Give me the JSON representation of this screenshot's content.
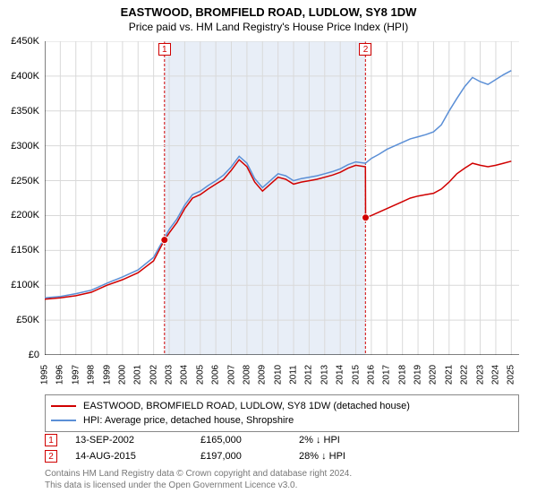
{
  "title": {
    "main": "EASTWOOD, BROMFIELD ROAD, LUDLOW, SY8 1DW",
    "sub": "Price paid vs. HM Land Registry's House Price Index (HPI)",
    "fontsize_main": 13,
    "fontsize_sub": 12
  },
  "chart": {
    "type": "line",
    "background_color": "#ffffff",
    "grid_color": "#d9d9d9",
    "highlight_band_color": "#e8eef7",
    "axis_color": "#000000",
    "line_width": 1.5,
    "marker_radius": 4,
    "marker_fill": "#d00000",
    "badge_border": "#d00000",
    "x": {
      "min": 1995,
      "max": 2025.5,
      "ticks": [
        1995,
        1996,
        1997,
        1998,
        1999,
        2000,
        2001,
        2002,
        2003,
        2004,
        2005,
        2006,
        2007,
        2008,
        2009,
        2010,
        2011,
        2012,
        2013,
        2014,
        2015,
        2016,
        2017,
        2018,
        2019,
        2020,
        2021,
        2022,
        2023,
        2024,
        2025
      ]
    },
    "y": {
      "min": 0,
      "max": 450000,
      "tick_step": 50000,
      "labels": [
        "£0",
        "£50K",
        "£100K",
        "£150K",
        "£200K",
        "£250K",
        "£300K",
        "£350K",
        "£400K",
        "£450K"
      ]
    },
    "highlight_band": {
      "x_start": 2002.7,
      "x_end": 2015.62
    },
    "series": [
      {
        "name": "price_paid",
        "label": "EASTWOOD, BROMFIELD ROAD, LUDLOW, SY8 1DW (detached house)",
        "color": "#d00000",
        "points": [
          [
            1995.0,
            80000
          ],
          [
            1996.0,
            82000
          ],
          [
            1997.0,
            85000
          ],
          [
            1998.0,
            90000
          ],
          [
            1999.0,
            100000
          ],
          [
            2000.0,
            108000
          ],
          [
            2001.0,
            118000
          ],
          [
            2002.0,
            135000
          ],
          [
            2002.7,
            165000
          ],
          [
            2003.0,
            175000
          ],
          [
            2003.5,
            190000
          ],
          [
            2004.0,
            210000
          ],
          [
            2004.5,
            225000
          ],
          [
            2005.0,
            230000
          ],
          [
            2005.5,
            238000
          ],
          [
            2006.0,
            245000
          ],
          [
            2006.5,
            252000
          ],
          [
            2007.0,
            265000
          ],
          [
            2007.5,
            280000
          ],
          [
            2008.0,
            270000
          ],
          [
            2008.5,
            248000
          ],
          [
            2009.0,
            235000
          ],
          [
            2009.5,
            245000
          ],
          [
            2010.0,
            255000
          ],
          [
            2010.5,
            252000
          ],
          [
            2011.0,
            245000
          ],
          [
            2011.5,
            248000
          ],
          [
            2012.0,
            250000
          ],
          [
            2012.5,
            252000
          ],
          [
            2013.0,
            255000
          ],
          [
            2013.5,
            258000
          ],
          [
            2014.0,
            262000
          ],
          [
            2014.5,
            268000
          ],
          [
            2015.0,
            272000
          ],
          [
            2015.62,
            270000
          ],
          [
            2015.63,
            197000
          ],
          [
            2016.0,
            200000
          ],
          [
            2016.5,
            205000
          ],
          [
            2017.0,
            210000
          ],
          [
            2017.5,
            215000
          ],
          [
            2018.0,
            220000
          ],
          [
            2018.5,
            225000
          ],
          [
            2019.0,
            228000
          ],
          [
            2019.5,
            230000
          ],
          [
            2020.0,
            232000
          ],
          [
            2020.5,
            238000
          ],
          [
            2021.0,
            248000
          ],
          [
            2021.5,
            260000
          ],
          [
            2022.0,
            268000
          ],
          [
            2022.5,
            275000
          ],
          [
            2023.0,
            272000
          ],
          [
            2023.5,
            270000
          ],
          [
            2024.0,
            272000
          ],
          [
            2024.5,
            275000
          ],
          [
            2025.0,
            278000
          ]
        ]
      },
      {
        "name": "hpi",
        "label": "HPI: Average price, detached house, Shropshire",
        "color": "#5b8fd6",
        "points": [
          [
            1995.0,
            82000
          ],
          [
            1996.0,
            84000
          ],
          [
            1997.0,
            88000
          ],
          [
            1998.0,
            93000
          ],
          [
            1999.0,
            103000
          ],
          [
            2000.0,
            112000
          ],
          [
            2001.0,
            122000
          ],
          [
            2002.0,
            140000
          ],
          [
            2002.7,
            168000
          ],
          [
            2003.0,
            180000
          ],
          [
            2003.5,
            195000
          ],
          [
            2004.0,
            215000
          ],
          [
            2004.5,
            230000
          ],
          [
            2005.0,
            235000
          ],
          [
            2005.5,
            243000
          ],
          [
            2006.0,
            250000
          ],
          [
            2006.5,
            258000
          ],
          [
            2007.0,
            270000
          ],
          [
            2007.5,
            285000
          ],
          [
            2008.0,
            275000
          ],
          [
            2008.5,
            253000
          ],
          [
            2009.0,
            240000
          ],
          [
            2009.5,
            250000
          ],
          [
            2010.0,
            260000
          ],
          [
            2010.5,
            257000
          ],
          [
            2011.0,
            250000
          ],
          [
            2011.5,
            253000
          ],
          [
            2012.0,
            255000
          ],
          [
            2012.5,
            257000
          ],
          [
            2013.0,
            260000
          ],
          [
            2013.5,
            263000
          ],
          [
            2014.0,
            267000
          ],
          [
            2014.5,
            273000
          ],
          [
            2015.0,
            277000
          ],
          [
            2015.62,
            275000
          ],
          [
            2016.0,
            282000
          ],
          [
            2016.5,
            288000
          ],
          [
            2017.0,
            295000
          ],
          [
            2017.5,
            300000
          ],
          [
            2018.0,
            305000
          ],
          [
            2018.5,
            310000
          ],
          [
            2019.0,
            313000
          ],
          [
            2019.5,
            316000
          ],
          [
            2020.0,
            320000
          ],
          [
            2020.5,
            330000
          ],
          [
            2021.0,
            350000
          ],
          [
            2021.5,
            368000
          ],
          [
            2022.0,
            385000
          ],
          [
            2022.5,
            398000
          ],
          [
            2023.0,
            392000
          ],
          [
            2023.5,
            388000
          ],
          [
            2024.0,
            395000
          ],
          [
            2024.5,
            402000
          ],
          [
            2025.0,
            408000
          ]
        ]
      }
    ],
    "sale_markers": [
      {
        "badge": "1",
        "x": 2002.7,
        "y": 165000
      },
      {
        "badge": "2",
        "x": 2015.63,
        "y": 197000
      }
    ]
  },
  "legend": {
    "border_color": "#888888",
    "items": [
      {
        "color": "#d00000",
        "label": "EASTWOOD, BROMFIELD ROAD, LUDLOW, SY8 1DW (detached house)"
      },
      {
        "color": "#5b8fd6",
        "label": "HPI: Average price, detached house, Shropshire"
      }
    ]
  },
  "sales_table": {
    "rows": [
      {
        "badge": "1",
        "date": "13-SEP-2002",
        "price": "£165,000",
        "delta": "2% ↓ HPI"
      },
      {
        "badge": "2",
        "date": "14-AUG-2015",
        "price": "£197,000",
        "delta": "28% ↓ HPI"
      }
    ]
  },
  "footer": {
    "line1": "Contains HM Land Registry data © Crown copyright and database right 2024.",
    "line2": "This data is licensed under the Open Government Licence v3.0.",
    "color": "#777777"
  }
}
